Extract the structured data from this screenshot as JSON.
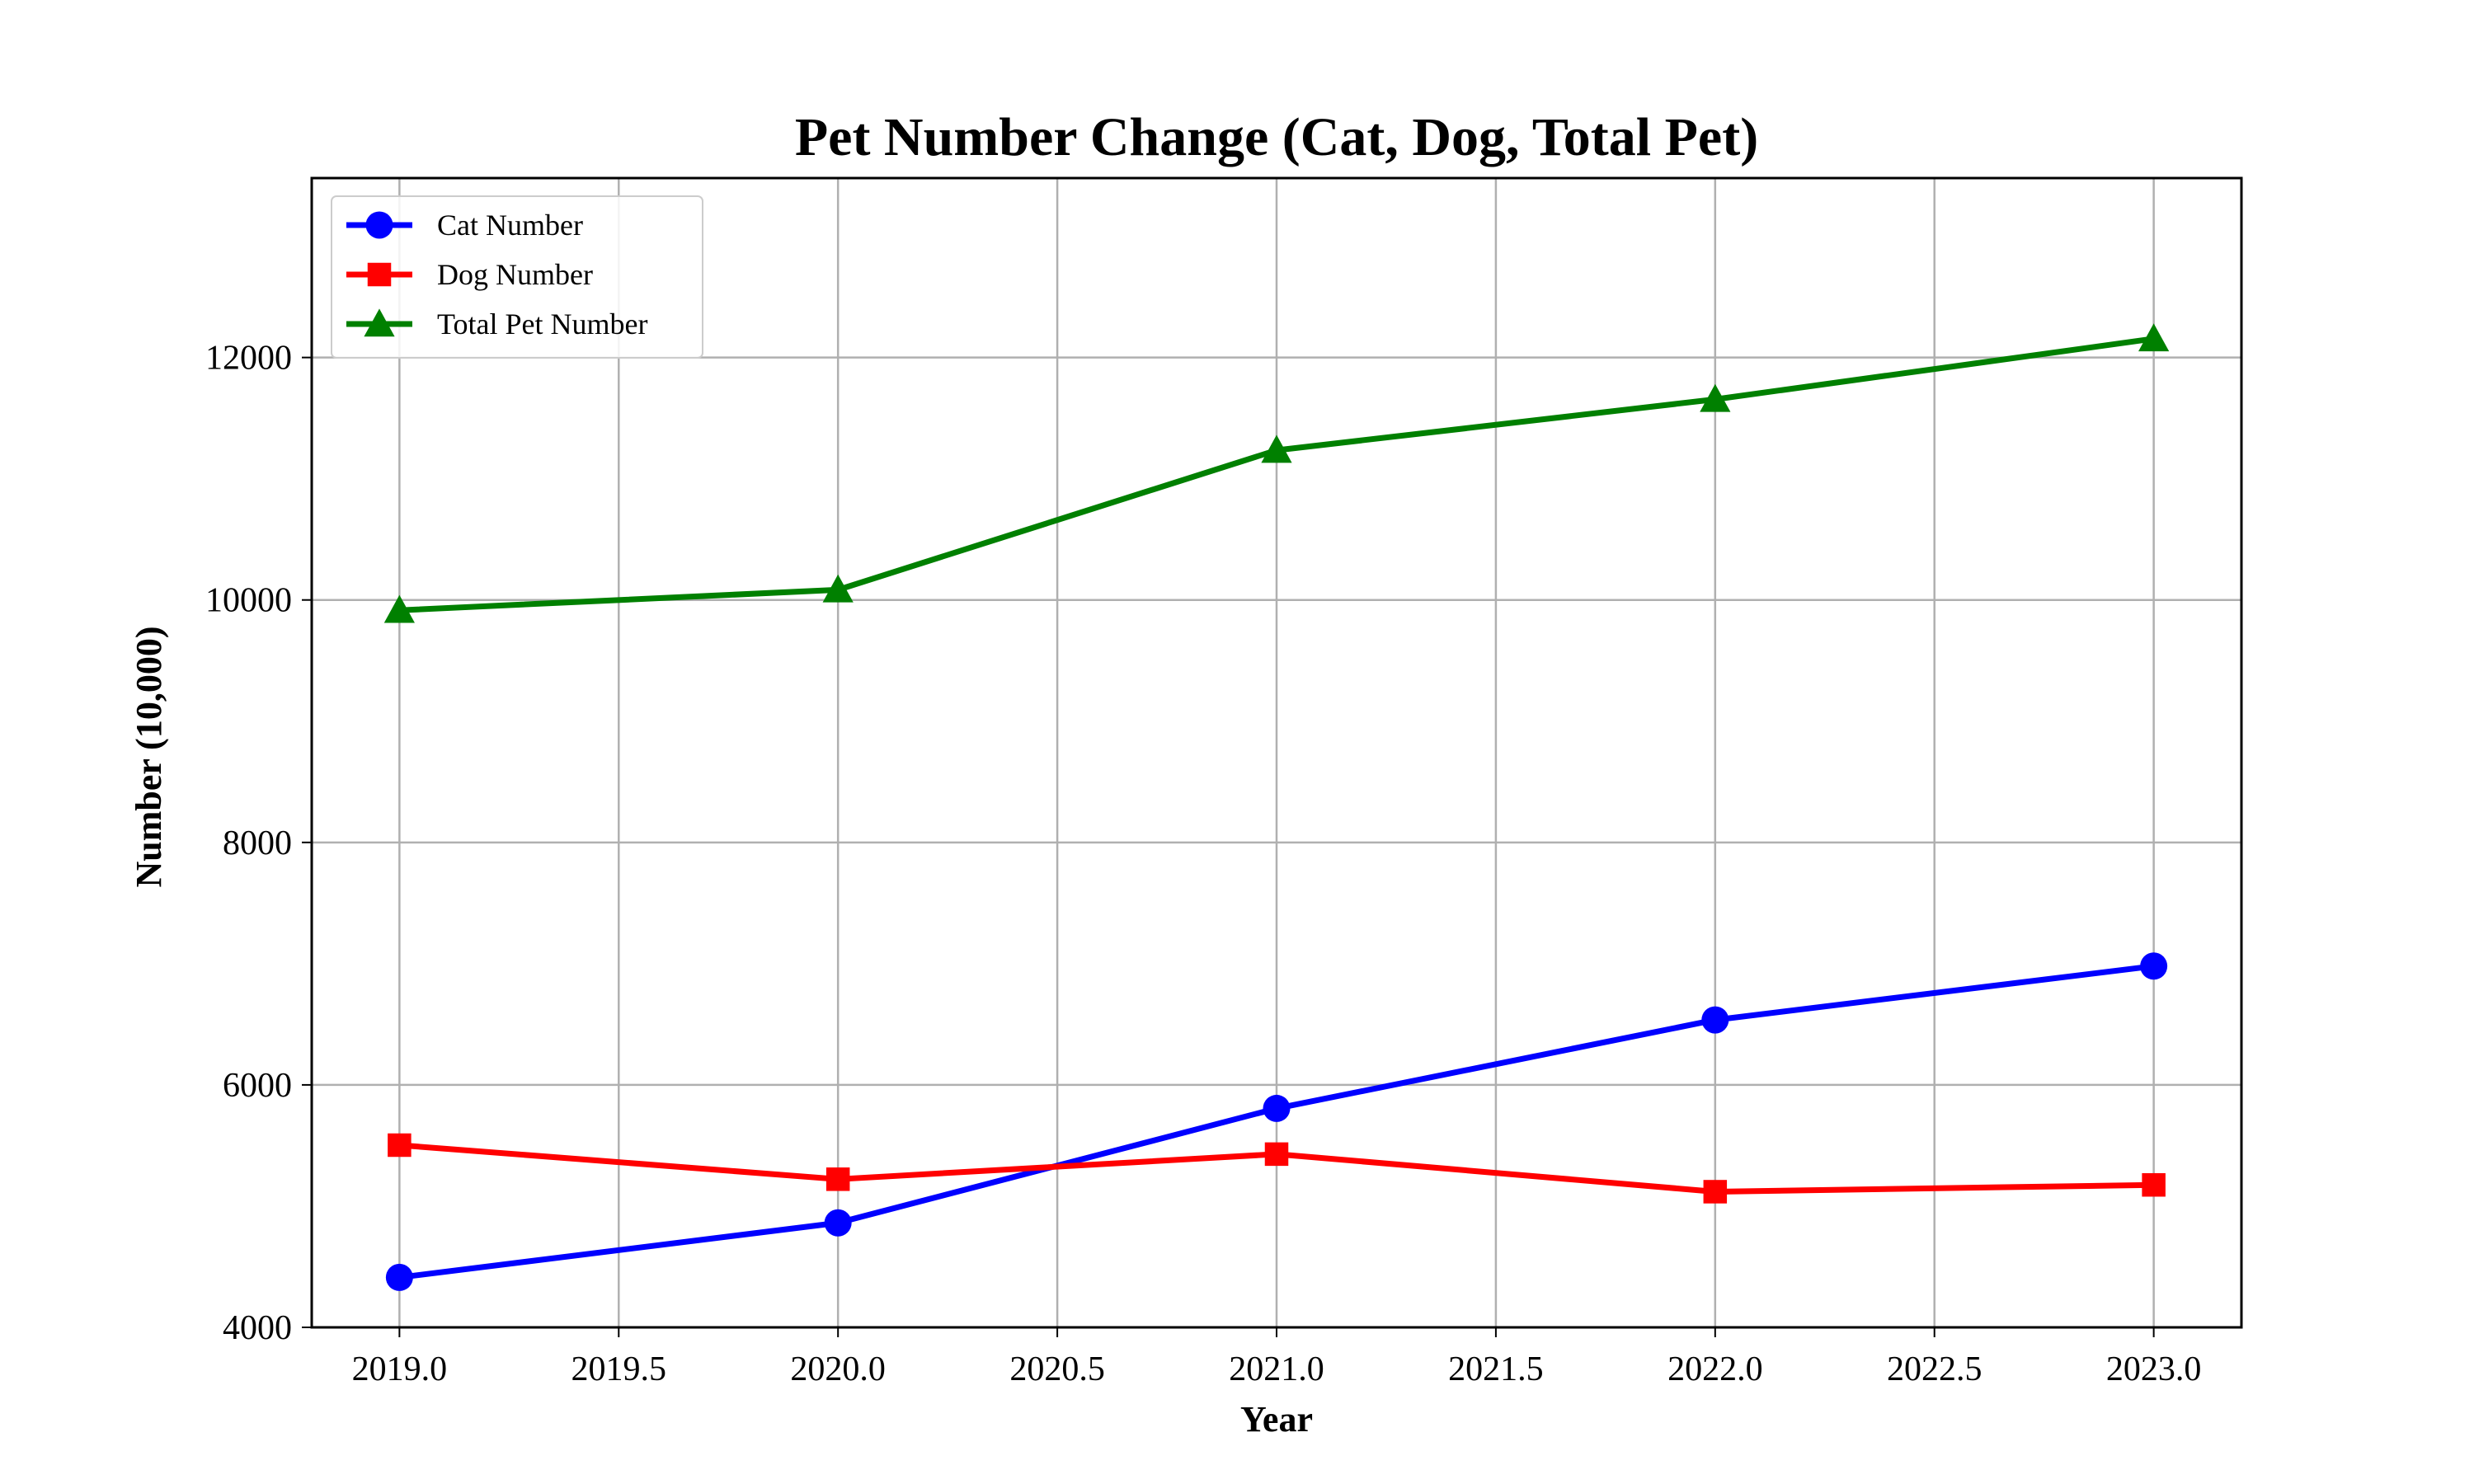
{
  "chart_data": {
    "type": "line",
    "title": "Pet Number Change (Cat, Dog, Total Pet)",
    "xlabel": "Year",
    "ylabel": "Number (10,000)",
    "x": [
      2019,
      2020,
      2021,
      2022,
      2023
    ],
    "xlim": [
      2018.8,
      2023.2
    ],
    "ylim": [
      4000,
      13480
    ],
    "xticks": [
      2019.0,
      2019.5,
      2020.0,
      2020.5,
      2021.0,
      2021.5,
      2022.0,
      2022.5,
      2023.0
    ],
    "xtick_labels": [
      "2019.0",
      "2019.5",
      "2020.0",
      "2020.5",
      "2021.0",
      "2021.5",
      "2022.0",
      "2022.5",
      "2023.0"
    ],
    "yticks": [
      4000,
      6000,
      8000,
      10000,
      12000
    ],
    "ytick_labels": [
      "4000",
      "6000",
      "8000",
      "10000",
      "12000"
    ],
    "grid": true,
    "legend_position": "top-left",
    "series": [
      {
        "name": "Cat Number",
        "values": [
          4412,
          4862,
          5806,
          6536,
          6980
        ],
        "color": "#0000ff",
        "marker": "circle"
      },
      {
        "name": "Dog Number",
        "values": [
          5503,
          5222,
          5429,
          5119,
          5175
        ],
        "color": "#ff0000",
        "marker": "square"
      },
      {
        "name": "Total Pet Number",
        "values": [
          9915,
          10084,
          11235,
          11655,
          12155
        ],
        "color": "#008000",
        "marker": "triangle"
      }
    ]
  }
}
